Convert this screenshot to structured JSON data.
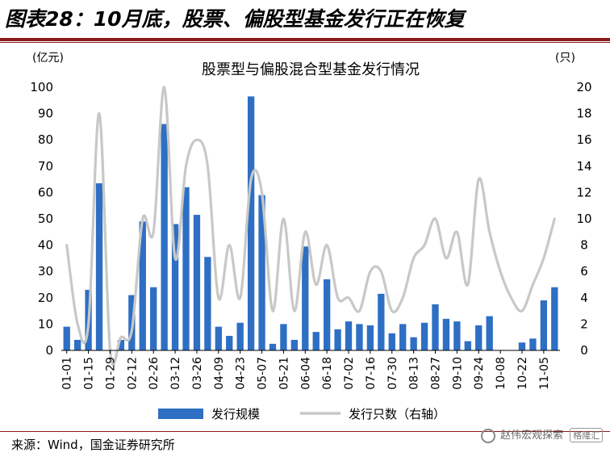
{
  "figure": {
    "title": "图表28：10月底，股票、偏股型基金发行正在恢复",
    "source": "来源：Wind，国金证券研究所",
    "watermark_text": "赵伟宏观探索",
    "watermark_badge": "格隆汇"
  },
  "chart_data": {
    "type": "bar+line",
    "title": "股票型与偏股混合型基金发行情况",
    "left_axis_unit": "(亿元)",
    "right_axis_unit": "(只)",
    "left_ylim": [
      0,
      100
    ],
    "right_ylim": [
      0,
      20
    ],
    "left_ticks": [
      "0",
      "10",
      "20",
      "30",
      "40",
      "50",
      "60",
      "70",
      "80",
      "90",
      "100"
    ],
    "right_ticks": [
      "0",
      "2",
      "4",
      "6",
      "8",
      "10",
      "12",
      "14",
      "16",
      "18",
      "20"
    ],
    "x_tick_labels": [
      "01-01",
      "01-15",
      "01-29",
      "02-12",
      "02-26",
      "03-12",
      "03-26",
      "04-09",
      "04-23",
      "05-07",
      "05-21",
      "06-04",
      "06-18",
      "07-02",
      "07-16",
      "07-30",
      "08-13",
      "08-27",
      "09-10",
      "09-24",
      "10-08",
      "10-22",
      "11-05"
    ],
    "series": [
      {
        "name": "发行规模",
        "axis": "left",
        "color": "#2e6fc4",
        "values": [
          9,
          4,
          23,
          63.5,
          0,
          4,
          21,
          49,
          24,
          86,
          48,
          62,
          51.5,
          35.5,
          9,
          5.5,
          10.5,
          96.5,
          59,
          2.5,
          10,
          4,
          39.5,
          7,
          27,
          8,
          11,
          10,
          9.5,
          21.5,
          6.5,
          10,
          5,
          10.5,
          17.5,
          12,
          11,
          3.5,
          9.5,
          13,
          0,
          0,
          3,
          4.5,
          19,
          24
        ]
      },
      {
        "name": "发行只数（右轴）",
        "axis": "right",
        "color": "#c8c8c8",
        "values": [
          8,
          2,
          2,
          18,
          0,
          1,
          1.5,
          10,
          9,
          20,
          7,
          14,
          16,
          14,
          4,
          8,
          4,
          13,
          12,
          3,
          10,
          3,
          9,
          5,
          8,
          4,
          4,
          3,
          6,
          6,
          3,
          4,
          7,
          8,
          10,
          7,
          9,
          5,
          13,
          9,
          6,
          4,
          3,
          5,
          7,
          10
        ]
      }
    ],
    "legend": {
      "placement": "bottom"
    },
    "grid": false
  }
}
